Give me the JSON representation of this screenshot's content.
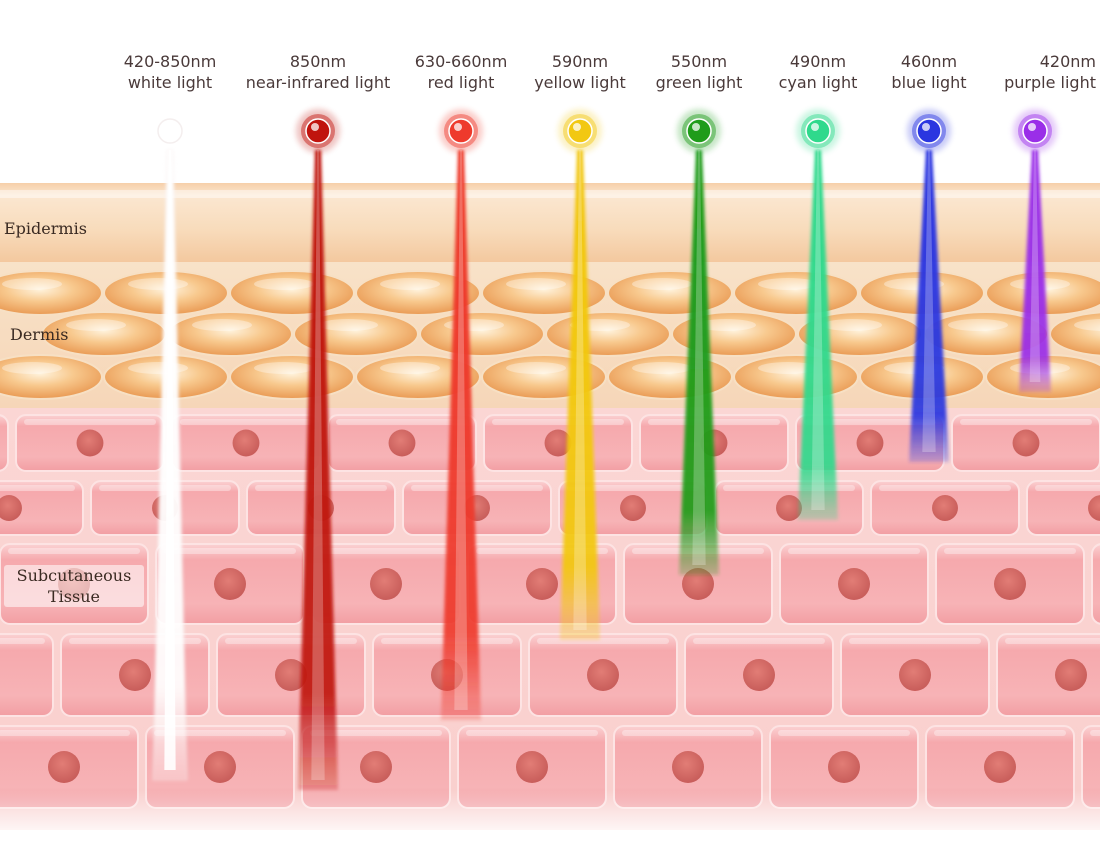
{
  "layers": {
    "epidermis": "Epidermis",
    "dermis": "Dermis",
    "subcutaneous_line1": "Subcutaneous",
    "subcutaneous_line2": "Tissue"
  },
  "lights": [
    {
      "wavelength": "420-850nm",
      "name": "white light",
      "color": "#ffffff",
      "depth_layer": "subcutaneous (deepest)"
    },
    {
      "wavelength": "850nm",
      "name": "near-infrared light",
      "color": "#c0140e",
      "depth_layer": "subcutaneous (deepest)"
    },
    {
      "wavelength": "630-660nm",
      "name": "red light",
      "color": "#ee3a2c",
      "depth_layer": "subcutaneous"
    },
    {
      "wavelength": "590nm",
      "name": "yellow light",
      "color": "#f2c812",
      "depth_layer": "subcutaneous"
    },
    {
      "wavelength": "550nm",
      "name": "green light",
      "color": "#1f9c1a",
      "depth_layer": "subcutaneous"
    },
    {
      "wavelength": "490nm",
      "name": "cyan light",
      "color": "#2fd98c",
      "depth_layer": "dermis/subcutaneous"
    },
    {
      "wavelength": "460nm",
      "name": "blue light",
      "color": "#2a36e0",
      "depth_layer": "dermis/subcutaneous"
    },
    {
      "wavelength": "420nm",
      "name": "purple light",
      "color": "#9a2ee8",
      "depth_layer": "dermis"
    }
  ],
  "colors": {
    "epidermis": "#f8d6b3",
    "dermis_cell": "#f0a765",
    "subcutaneous_cell": "#f7aeb2",
    "nucleus": "#d46a66"
  }
}
